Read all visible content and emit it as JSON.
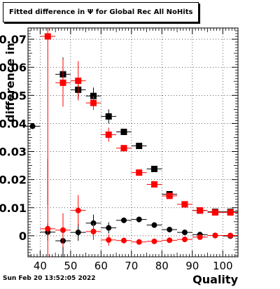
{
  "chart_data": {
    "type": "scatter",
    "title": "Fitted difference in  Ψ  for Global Rec All NoHits",
    "xlabel": "Quality",
    "ylabel": "difference in",
    "xlim": [
      36,
      105
    ],
    "ylim": [
      -0.0075,
      0.074
    ],
    "x_ticks": [
      40,
      50,
      60,
      70,
      80,
      90,
      100
    ],
    "x_tick_labels": [
      "40",
      "50",
      "60",
      "70",
      "80",
      "90",
      "100"
    ],
    "y_ticks": [
      0,
      0.01,
      0.02,
      0.03,
      0.04,
      0.05,
      0.06,
      0.07
    ],
    "y_tick_labels": [
      "0",
      "0.01",
      "0.02",
      "0.03",
      "0.04",
      "0.05",
      "0.06",
      "0.07"
    ],
    "grid": true,
    "legend": "none",
    "series": [
      {
        "marker": "square",
        "color": "#000000",
        "points": [
          {
            "x": 47.5,
            "y": 0.0575,
            "yerr": 0.006
          },
          {
            "x": 52.5,
            "y": 0.052,
            "yerr": 0.003
          },
          {
            "x": 57.5,
            "y": 0.0498,
            "yerr": 0.003
          },
          {
            "x": 62.5,
            "y": 0.0425,
            "yerr": 0.0025
          },
          {
            "x": 67.5,
            "y": 0.037,
            "yerr": 0.001
          },
          {
            "x": 72.5,
            "y": 0.032,
            "yerr": 0.001
          },
          {
            "x": 77.5,
            "y": 0.0238,
            "yerr": 0.0008
          },
          {
            "x": 82.5,
            "y": 0.0148,
            "yerr": 0.0007
          },
          {
            "x": 87.5,
            "y": 0.0112,
            "yerr": 0.0006
          },
          {
            "x": 92.5,
            "y": 0.009,
            "yerr": 0.0005
          },
          {
            "x": 97.5,
            "y": 0.0085,
            "yerr": 0.0005
          },
          {
            "x": 102.5,
            "y": 0.0085,
            "yerr": 0.0004
          }
        ]
      },
      {
        "marker": "square",
        "color": "#ff0000",
        "points": [
          {
            "x": 42.5,
            "y": 0.071,
            "yerr": 0.06
          },
          {
            "x": 47.5,
            "y": 0.0545,
            "yerr": 0.0085
          },
          {
            "x": 52.5,
            "y": 0.0552,
            "yerr": 0.007
          },
          {
            "x": 57.5,
            "y": 0.0473,
            "yerr": 0.0025
          },
          {
            "x": 62.5,
            "y": 0.036,
            "yerr": 0.0025
          },
          {
            "x": 67.5,
            "y": 0.0312,
            "yerr": 0.001
          },
          {
            "x": 72.5,
            "y": 0.0225,
            "yerr": 0.001
          },
          {
            "x": 77.5,
            "y": 0.0183,
            "yerr": 0.0008
          },
          {
            "x": 82.5,
            "y": 0.0142,
            "yerr": 0.0007
          },
          {
            "x": 87.5,
            "y": 0.0112,
            "yerr": 0.0005
          },
          {
            "x": 92.5,
            "y": 0.009,
            "yerr": 0.0005
          },
          {
            "x": 97.5,
            "y": 0.0083,
            "yerr": 0.0005
          },
          {
            "x": 102.5,
            "y": 0.0083,
            "yerr": 0.0004
          }
        ]
      },
      {
        "marker": "circle",
        "color": "#000000",
        "points": [
          {
            "x": 37.5,
            "y": 0.039,
            "yerr": 0
          },
          {
            "x": 42.5,
            "y": 0.0013,
            "yerr": 0.003
          },
          {
            "x": 47.5,
            "y": -0.0018,
            "yerr": 0.006
          },
          {
            "x": 52.5,
            "y": 0.0012,
            "yerr": 0.003
          },
          {
            "x": 57.5,
            "y": 0.0045,
            "yerr": 0.003
          },
          {
            "x": 62.5,
            "y": 0.0028,
            "yerr": 0.002
          },
          {
            "x": 67.5,
            "y": 0.0055,
            "yerr": 0.001
          },
          {
            "x": 72.5,
            "y": 0.0058,
            "yerr": 0.001
          },
          {
            "x": 77.5,
            "y": 0.0038,
            "yerr": 0.0008
          },
          {
            "x": 82.5,
            "y": 0.0022,
            "yerr": 0.0006
          },
          {
            "x": 87.5,
            "y": 0.0012,
            "yerr": 0.0005
          },
          {
            "x": 92.5,
            "y": 0.0004,
            "yerr": 0.0004
          },
          {
            "x": 97.5,
            "y": 0.0001,
            "yerr": 0.0004
          },
          {
            "x": 102.5,
            "y": -0.0001,
            "yerr": 0.0004
          }
        ]
      },
      {
        "marker": "circle",
        "color": "#ff0000",
        "points": [
          {
            "x": 42.5,
            "y": 0.0025,
            "yerr": 0.025
          },
          {
            "x": 47.5,
            "y": 0.002,
            "yerr": 0.006
          },
          {
            "x": 52.5,
            "y": 0.009,
            "yerr": 0.0055
          },
          {
            "x": 57.5,
            "y": 0.0015,
            "yerr": 0.003
          },
          {
            "x": 62.5,
            "y": -0.0015,
            "yerr": 0.002
          },
          {
            "x": 67.5,
            "y": -0.0017,
            "yerr": 0.001
          },
          {
            "x": 72.5,
            "y": -0.0022,
            "yerr": 0.0008
          },
          {
            "x": 77.5,
            "y": -0.002,
            "yerr": 0.0007
          },
          {
            "x": 82.5,
            "y": -0.0016,
            "yerr": 0.0006
          },
          {
            "x": 87.5,
            "y": -0.0013,
            "yerr": 0.0005
          },
          {
            "x": 92.5,
            "y": -0.0005,
            "yerr": 0.0004
          },
          {
            "x": 97.5,
            "y": 0.0001,
            "yerr": 0.0004
          },
          {
            "x": 102.5,
            "y": 0.0001,
            "yerr": 0.0004
          }
        ]
      }
    ]
  },
  "footer": {
    "timestamp": "Sun Feb 20 13:52:05 2022"
  }
}
